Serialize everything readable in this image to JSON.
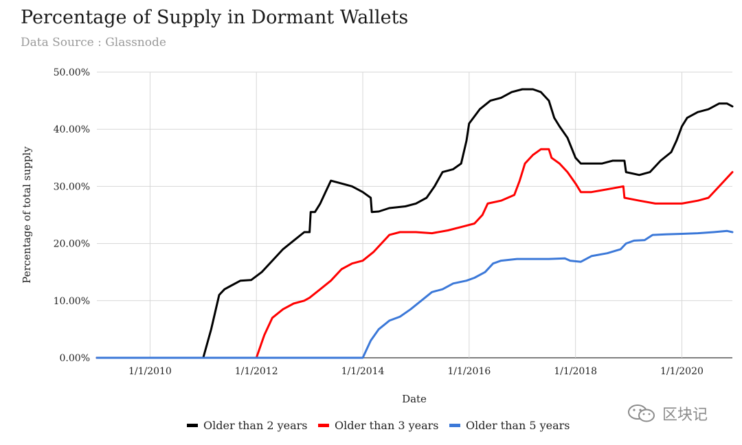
{
  "header": {
    "title": "Percentage of Supply in Dormant Wallets",
    "subtitle": "Data Source : Glassnode"
  },
  "watermark": {
    "text": "区块记",
    "icon": "wechat-icon"
  },
  "chart_data": {
    "type": "line",
    "title": "Percentage of Supply in Dormant Wallets",
    "subtitle": "Data Source : Glassnode",
    "xlabel": "Date",
    "ylabel": "Percentage of total supply",
    "xlim": [
      2009.0,
      2020.95
    ],
    "ylim": [
      0,
      50
    ],
    "yticks": [
      "0.00%",
      "10.00%",
      "20.00%",
      "30.00%",
      "40.00%",
      "50.00%"
    ],
    "xticks": [
      "1/1/2010",
      "1/1/2012",
      "1/1/2014",
      "1/1/2016",
      "1/1/2018",
      "1/1/2020"
    ],
    "grid": true,
    "legend_position": "bottom",
    "series": [
      {
        "name": "Older than 2 years",
        "color": "#000000",
        "points": [
          [
            2009.0,
            0
          ],
          [
            2011.0,
            0
          ],
          [
            2011.15,
            5
          ],
          [
            2011.3,
            11
          ],
          [
            2011.4,
            12
          ],
          [
            2011.5,
            12.5
          ],
          [
            2011.7,
            13.5
          ],
          [
            2011.9,
            13.6
          ],
          [
            2012.1,
            15
          ],
          [
            2012.3,
            17
          ],
          [
            2012.5,
            19
          ],
          [
            2012.7,
            20.5
          ],
          [
            2012.9,
            22
          ],
          [
            2013.0,
            22
          ],
          [
            2013.02,
            25.5
          ],
          [
            2013.1,
            25.5
          ],
          [
            2013.2,
            27
          ],
          [
            2013.3,
            29
          ],
          [
            2013.4,
            31
          ],
          [
            2013.6,
            30.5
          ],
          [
            2013.8,
            30
          ],
          [
            2013.9,
            29.5
          ],
          [
            2014.0,
            29
          ],
          [
            2014.15,
            28
          ],
          [
            2014.17,
            25.5
          ],
          [
            2014.3,
            25.6
          ],
          [
            2014.5,
            26.2
          ],
          [
            2014.8,
            26.5
          ],
          [
            2015.0,
            27
          ],
          [
            2015.2,
            28
          ],
          [
            2015.35,
            30
          ],
          [
            2015.5,
            32.5
          ],
          [
            2015.7,
            33
          ],
          [
            2015.85,
            34
          ],
          [
            2015.95,
            38
          ],
          [
            2016.0,
            41
          ],
          [
            2016.2,
            43.5
          ],
          [
            2016.4,
            45
          ],
          [
            2016.6,
            45.5
          ],
          [
            2016.8,
            46.5
          ],
          [
            2017.0,
            47
          ],
          [
            2017.2,
            47
          ],
          [
            2017.35,
            46.5
          ],
          [
            2017.5,
            45
          ],
          [
            2017.6,
            42
          ],
          [
            2017.7,
            40.5
          ],
          [
            2017.85,
            38.5
          ],
          [
            2018.0,
            35
          ],
          [
            2018.1,
            34
          ],
          [
            2018.3,
            34
          ],
          [
            2018.5,
            34
          ],
          [
            2018.7,
            34.5
          ],
          [
            2018.92,
            34.5
          ],
          [
            2018.95,
            32.5
          ],
          [
            2019.2,
            32
          ],
          [
            2019.4,
            32.5
          ],
          [
            2019.6,
            34.5
          ],
          [
            2019.8,
            36
          ],
          [
            2019.9,
            38
          ],
          [
            2020.0,
            40.5
          ],
          [
            2020.1,
            42
          ],
          [
            2020.3,
            43
          ],
          [
            2020.5,
            43.5
          ],
          [
            2020.7,
            44.5
          ],
          [
            2020.85,
            44.5
          ],
          [
            2020.95,
            44
          ]
        ]
      },
      {
        "name": "Older than 3 years",
        "color": "#ff0000",
        "points": [
          [
            2009.0,
            0
          ],
          [
            2012.0,
            0
          ],
          [
            2012.15,
            4
          ],
          [
            2012.3,
            7
          ],
          [
            2012.5,
            8.5
          ],
          [
            2012.7,
            9.5
          ],
          [
            2012.9,
            10
          ],
          [
            2013.0,
            10.5
          ],
          [
            2013.2,
            12
          ],
          [
            2013.4,
            13.5
          ],
          [
            2013.6,
            15.5
          ],
          [
            2013.8,
            16.5
          ],
          [
            2014.0,
            17
          ],
          [
            2014.2,
            18.5
          ],
          [
            2014.35,
            20
          ],
          [
            2014.5,
            21.5
          ],
          [
            2014.7,
            22
          ],
          [
            2015.0,
            22
          ],
          [
            2015.3,
            21.8
          ],
          [
            2015.6,
            22.3
          ],
          [
            2015.9,
            23
          ],
          [
            2016.1,
            23.5
          ],
          [
            2016.25,
            25
          ],
          [
            2016.35,
            27
          ],
          [
            2016.6,
            27.5
          ],
          [
            2016.85,
            28.5
          ],
          [
            2016.95,
            31
          ],
          [
            2017.05,
            34
          ],
          [
            2017.2,
            35.5
          ],
          [
            2017.35,
            36.5
          ],
          [
            2017.5,
            36.5
          ],
          [
            2017.55,
            35
          ],
          [
            2017.7,
            34
          ],
          [
            2017.85,
            32.5
          ],
          [
            2018.0,
            30.5
          ],
          [
            2018.1,
            29
          ],
          [
            2018.3,
            29
          ],
          [
            2018.6,
            29.5
          ],
          [
            2018.9,
            30
          ],
          [
            2018.92,
            28
          ],
          [
            2019.2,
            27.5
          ],
          [
            2019.5,
            27
          ],
          [
            2019.8,
            27
          ],
          [
            2020.0,
            27
          ],
          [
            2020.3,
            27.5
          ],
          [
            2020.5,
            28
          ],
          [
            2020.65,
            29.5
          ],
          [
            2020.8,
            31
          ],
          [
            2020.95,
            32.5
          ]
        ]
      },
      {
        "name": "Older than 5 years",
        "color": "#3b78d8",
        "points": [
          [
            2009.0,
            0
          ],
          [
            2014.0,
            0
          ],
          [
            2014.15,
            3
          ],
          [
            2014.3,
            5
          ],
          [
            2014.5,
            6.5
          ],
          [
            2014.7,
            7.2
          ],
          [
            2014.9,
            8.5
          ],
          [
            2015.1,
            10
          ],
          [
            2015.3,
            11.5
          ],
          [
            2015.5,
            12
          ],
          [
            2015.7,
            13
          ],
          [
            2015.95,
            13.5
          ],
          [
            2016.1,
            14
          ],
          [
            2016.3,
            15
          ],
          [
            2016.45,
            16.5
          ],
          [
            2016.6,
            17
          ],
          [
            2016.9,
            17.3
          ],
          [
            2017.2,
            17.3
          ],
          [
            2017.5,
            17.3
          ],
          [
            2017.8,
            17.4
          ],
          [
            2017.9,
            17
          ],
          [
            2018.1,
            16.8
          ],
          [
            2018.3,
            17.8
          ],
          [
            2018.6,
            18.3
          ],
          [
            2018.85,
            19
          ],
          [
            2018.95,
            20
          ],
          [
            2019.1,
            20.5
          ],
          [
            2019.3,
            20.6
          ],
          [
            2019.45,
            21.5
          ],
          [
            2019.7,
            21.6
          ],
          [
            2020.0,
            21.7
          ],
          [
            2020.3,
            21.8
          ],
          [
            2020.6,
            22
          ],
          [
            2020.85,
            22.2
          ],
          [
            2020.95,
            22
          ]
        ]
      }
    ]
  }
}
